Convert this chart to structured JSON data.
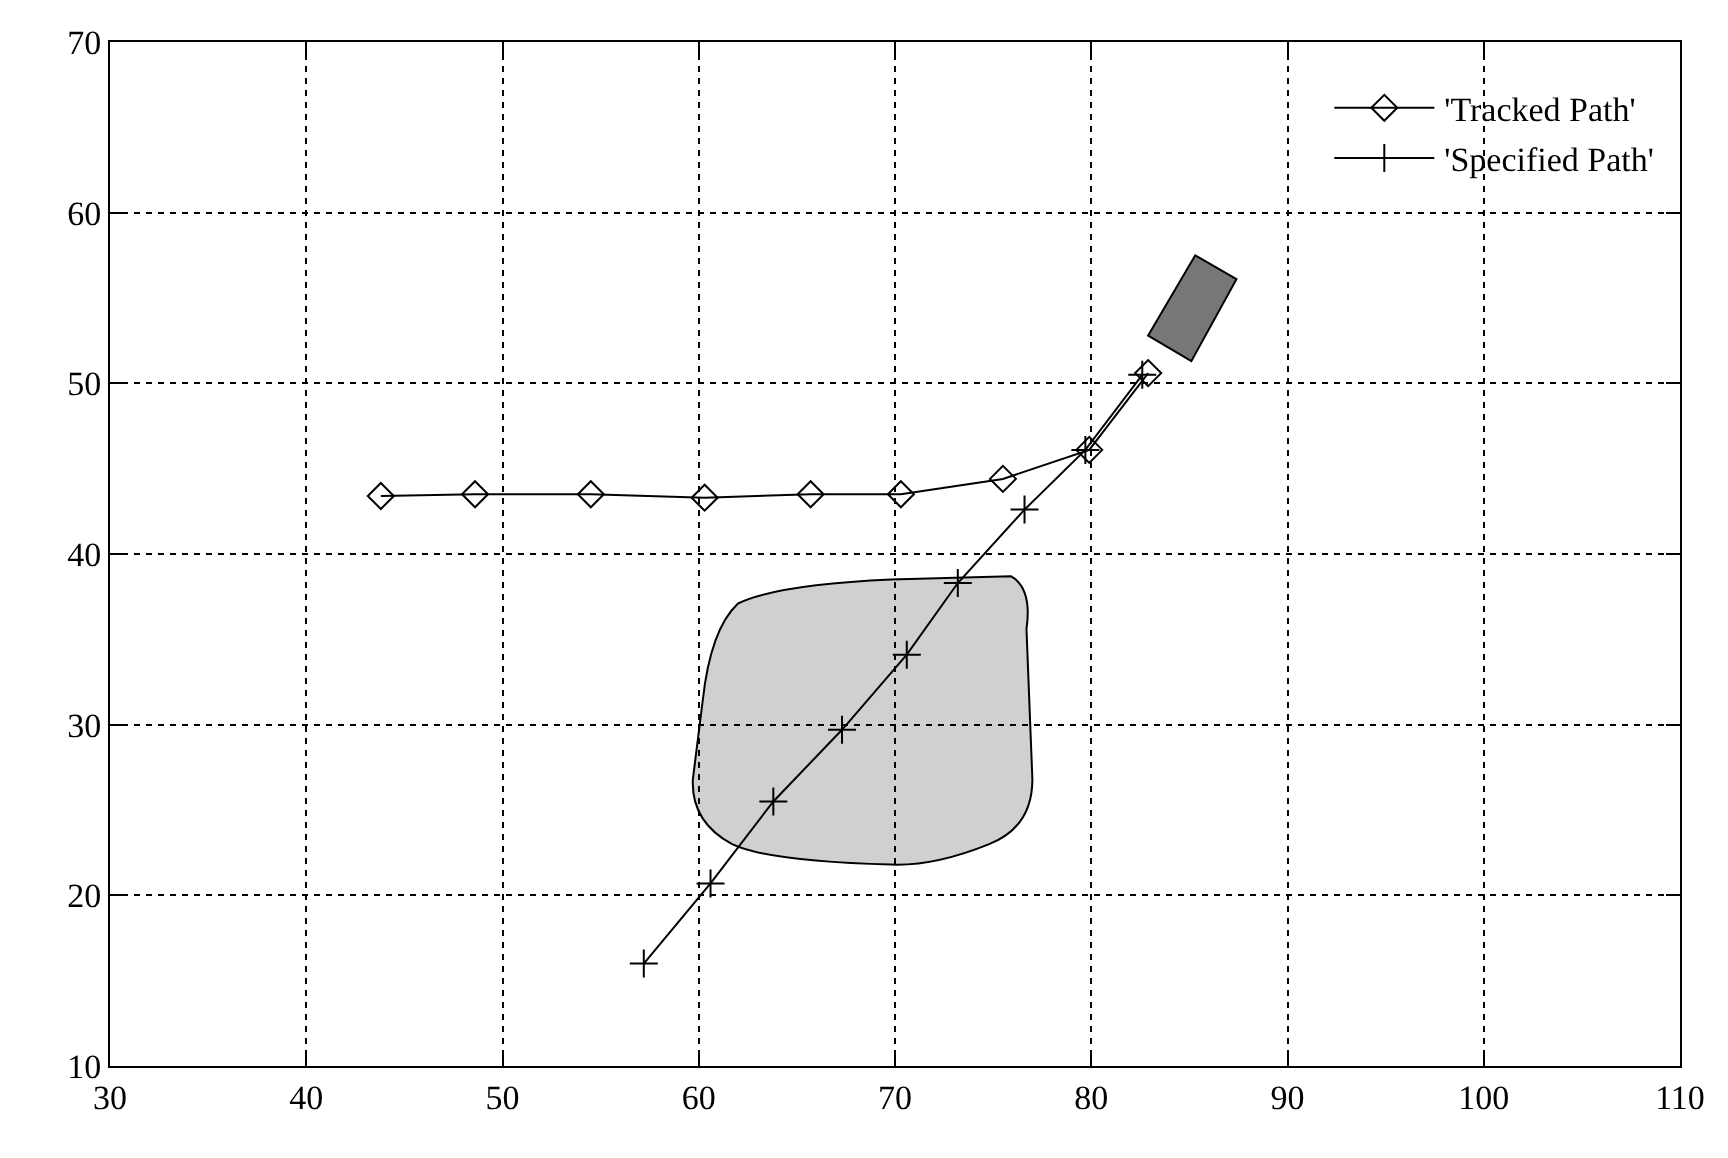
{
  "chart_data": {
    "type": "line",
    "xlim": [
      30,
      110
    ],
    "xticks": [
      30,
      40,
      50,
      60,
      70,
      80,
      90,
      100,
      110
    ],
    "ylim": [
      10,
      70
    ],
    "yticks": [
      10,
      20,
      30,
      40,
      50,
      60,
      70
    ],
    "grid": true,
    "legend": "top right",
    "line_style": "solid",
    "series": [
      {
        "name": "'Tracked Path'",
        "color": "#000000",
        "marker": "diamond",
        "x": [
          43.8,
          48.6,
          54.5,
          60.3,
          65.7,
          70.3,
          75.5,
          79.9,
          82.9
        ],
        "values": [
          43.4,
          43.5,
          43.5,
          43.3,
          43.5,
          43.5,
          44.4,
          46.1,
          50.6
        ]
      },
      {
        "name": "'Specified Path'",
        "color": "#000000",
        "marker": "cross",
        "x": [
          57.2,
          60.6,
          63.8,
          67.3,
          70.6,
          73.2,
          76.6,
          79.7,
          82.6
        ],
        "values": [
          16.0,
          20.7,
          25.5,
          29.7,
          34.1,
          38.3,
          42.6,
          46.1,
          50.5
        ]
      }
    ]
  }
}
